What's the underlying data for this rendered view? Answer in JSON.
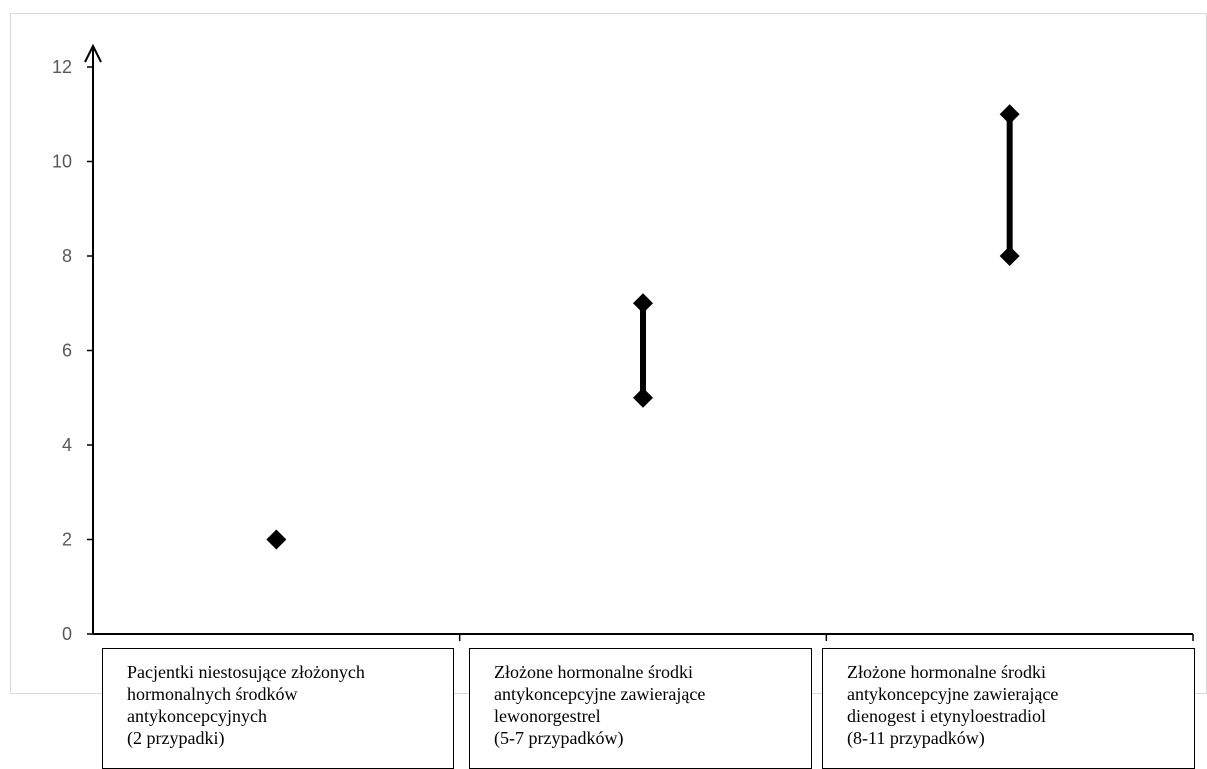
{
  "chart_data": {
    "type": "range",
    "y_ticks": [
      "0",
      "2",
      "4",
      "6",
      "8",
      "10",
      "12"
    ],
    "ylim": [
      0,
      12
    ],
    "grid": false,
    "categories": [
      "Pacjentki niestosujące złożonych\nhormonalnych środków\nantykoncepcyjnych\n(2 przypadki)",
      "Złożone hormonalne środki\nantykoncepcyjne zawierające\nlewonorgestrel\n(5-7 przypadków)",
      "Złożone hormonalne środki\nantykoncepcyjne zawierające\ndienogest i etynyloestradiol\n(8-11 przypadków)"
    ],
    "ranges": [
      {
        "low": 2,
        "high": 2
      },
      {
        "low": 5,
        "high": 7
      },
      {
        "low": 8,
        "high": 11
      }
    ],
    "colors": {
      "marker": "#000000",
      "axis": "#000000",
      "tick_label": "#595959",
      "frame": "#d9d9d9"
    }
  }
}
